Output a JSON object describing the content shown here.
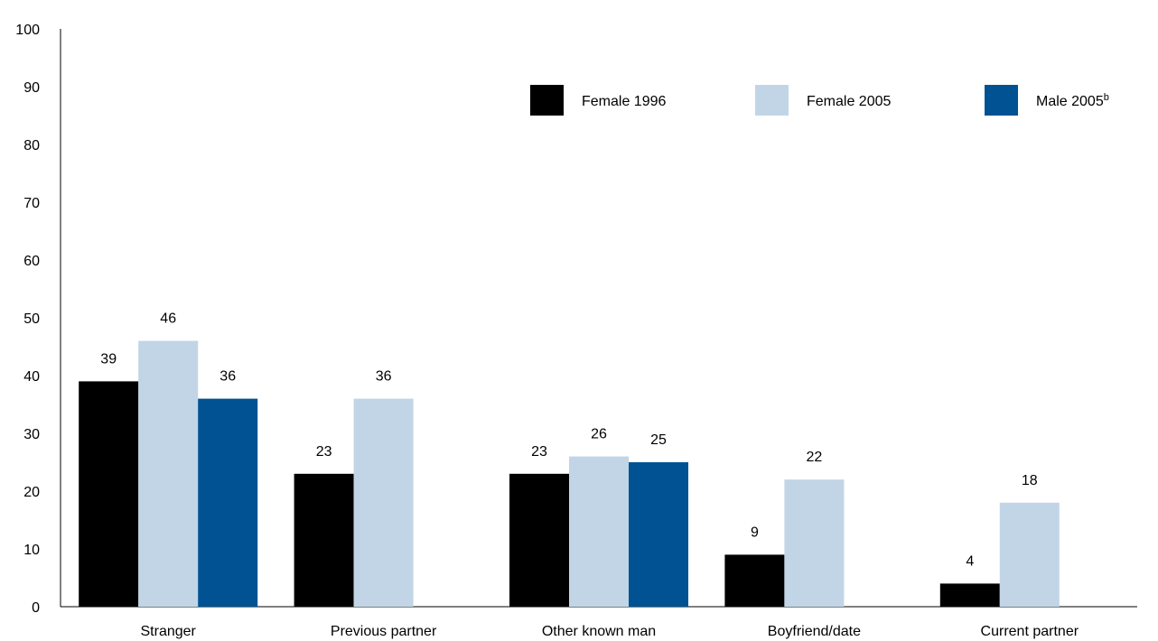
{
  "chart_data": {
    "type": "bar",
    "title": "",
    "xlabel": "",
    "ylabel": "",
    "ylim": [
      0,
      100
    ],
    "yticks": [
      0,
      10,
      20,
      30,
      40,
      50,
      60,
      70,
      80,
      90,
      100
    ],
    "grid": false,
    "legend_position": "top-right",
    "categories": [
      "Stranger",
      "Previous partner",
      "Other known man",
      "Boyfriend/date",
      "Current partner"
    ],
    "series": [
      {
        "name": "Female 1996",
        "color": "#000000",
        "values": [
          39,
          23,
          23,
          9,
          4
        ]
      },
      {
        "name": "Female 2005",
        "color": "#c1d5e6",
        "values": [
          46,
          36,
          26,
          22,
          18
        ]
      },
      {
        "name": "Male 2005",
        "name_superscript": "b",
        "color": "#005293",
        "values": [
          36,
          null,
          25,
          null,
          null
        ]
      }
    ]
  }
}
